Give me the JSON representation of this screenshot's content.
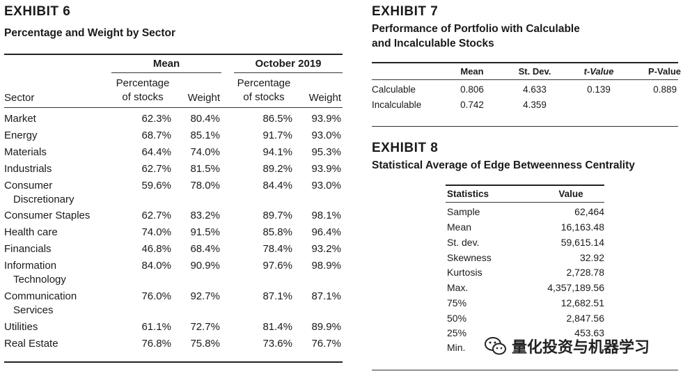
{
  "exhibit6": {
    "label": "EXHIBIT 6",
    "subtitle": "Percentage and Weight by Sector",
    "group_headers": [
      "Mean",
      "October 2019"
    ],
    "column_headers": {
      "sector": "Sector",
      "pct_line1": "Percentage",
      "pct_line2": "of stocks",
      "weight": "Weight"
    },
    "rows": [
      {
        "sector": [
          "Market"
        ],
        "mean_pct": "62.3%",
        "mean_weight": "80.4%",
        "oct_pct": "86.5%",
        "oct_weight": "93.9%"
      },
      {
        "sector": [
          "Energy"
        ],
        "mean_pct": "68.7%",
        "mean_weight": "85.1%",
        "oct_pct": "91.7%",
        "oct_weight": "93.0%"
      },
      {
        "sector": [
          "Materials"
        ],
        "mean_pct": "64.4%",
        "mean_weight": "74.0%",
        "oct_pct": "94.1%",
        "oct_weight": "95.3%"
      },
      {
        "sector": [
          "Industrials"
        ],
        "mean_pct": "62.7%",
        "mean_weight": "81.5%",
        "oct_pct": "89.2%",
        "oct_weight": "93.9%"
      },
      {
        "sector": [
          "Consumer",
          "Discretionary"
        ],
        "mean_pct": "59.6%",
        "mean_weight": "78.0%",
        "oct_pct": "84.4%",
        "oct_weight": "93.0%"
      },
      {
        "sector": [
          "Consumer Staples"
        ],
        "mean_pct": "62.7%",
        "mean_weight": "83.2%",
        "oct_pct": "89.7%",
        "oct_weight": "98.1%"
      },
      {
        "sector": [
          "Health care"
        ],
        "mean_pct": "74.0%",
        "mean_weight": "91.5%",
        "oct_pct": "85.8%",
        "oct_weight": "96.4%"
      },
      {
        "sector": [
          "Financials"
        ],
        "mean_pct": "46.8%",
        "mean_weight": "68.4%",
        "oct_pct": "78.4%",
        "oct_weight": "93.2%"
      },
      {
        "sector": [
          "Information",
          "Technology"
        ],
        "mean_pct": "84.0%",
        "mean_weight": "90.9%",
        "oct_pct": "97.6%",
        "oct_weight": "98.9%"
      },
      {
        "sector": [
          "Communication",
          "Services"
        ],
        "mean_pct": "76.0%",
        "mean_weight": "92.7%",
        "oct_pct": "87.1%",
        "oct_weight": "87.1%"
      },
      {
        "sector": [
          "Utilities"
        ],
        "mean_pct": "61.1%",
        "mean_weight": "72.7%",
        "oct_pct": "81.4%",
        "oct_weight": "89.9%"
      },
      {
        "sector": [
          "Real Estate"
        ],
        "mean_pct": "76.8%",
        "mean_weight": "75.8%",
        "oct_pct": "73.6%",
        "oct_weight": "76.7%"
      }
    ]
  },
  "exhibit7": {
    "label": "EXHIBIT 7",
    "subtitle_line1": "Performance of Portfolio with Calculable",
    "subtitle_line2": "and Incalculable Stocks",
    "headers": [
      "Mean",
      "St. Dev.",
      "t-Value",
      "P-Value"
    ],
    "rows": [
      {
        "label": "Calculable",
        "mean": "0.806",
        "stdev": "4.633",
        "tvalue": "0.139",
        "pvalue": "0.889"
      },
      {
        "label": "Incalculable",
        "mean": "0.742",
        "stdev": "4.359",
        "tvalue": "",
        "pvalue": ""
      }
    ]
  },
  "exhibit8": {
    "label": "EXHIBIT 8",
    "subtitle": "Statistical Average of Edge Betweenness Centrality",
    "headers": [
      "Statistics",
      "Value"
    ],
    "rows": [
      {
        "stat": "Sample",
        "value": "62,464"
      },
      {
        "stat": "Mean",
        "value": "16,163.48"
      },
      {
        "stat": "St. dev.",
        "value": "59,615.14"
      },
      {
        "stat": "Skewness",
        "value": "32.92"
      },
      {
        "stat": "Kurtosis",
        "value": "2,728.78"
      },
      {
        "stat": "Max.",
        "value": "4,357,189.56"
      },
      {
        "stat": "75%",
        "value": "12,682.51"
      },
      {
        "stat": "50%",
        "value": "2,847.56"
      },
      {
        "stat": "25%",
        "value": "453.63"
      },
      {
        "stat": "Min.",
        "value": ""
      }
    ]
  },
  "watermark": {
    "text": "量化投资与机器学习",
    "icon": "wechat-icon"
  }
}
